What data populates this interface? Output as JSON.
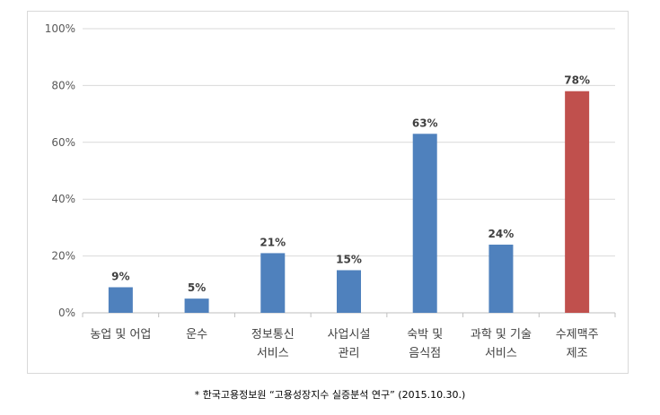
{
  "chart_data": {
    "type": "bar",
    "categories": [
      [
        "농업 및 어업"
      ],
      [
        "운수"
      ],
      [
        "정보통신",
        "서비스"
      ],
      [
        "사업시설",
        "관리"
      ],
      [
        "숙박 및",
        "음식점"
      ],
      [
        "과학 및 기술",
        "서비스"
      ],
      [
        "수제맥주",
        "제조"
      ]
    ],
    "values": [
      9,
      5,
      21,
      15,
      63,
      24,
      78
    ],
    "data_labels": [
      "9%",
      "5%",
      "21%",
      "15%",
      "63%",
      "24%",
      "78%"
    ],
    "ylim": [
      0,
      100
    ],
    "yticks": [
      0,
      20,
      40,
      60,
      80,
      100
    ],
    "ytick_labels": [
      "0%",
      "20%",
      "40%",
      "60%",
      "80%",
      "100%"
    ],
    "grid": true,
    "legend": "none",
    "colors": {
      "default_bar": "#4f81bd",
      "highlight_bar": "#c0504d",
      "gridline": "#d9d9d9",
      "axis": "#bfbfbf"
    },
    "highlight_index": 6
  },
  "footnote": "* 한국고용정보원 “고용성장지수 실증분석 연구” (2015.10.30.)"
}
